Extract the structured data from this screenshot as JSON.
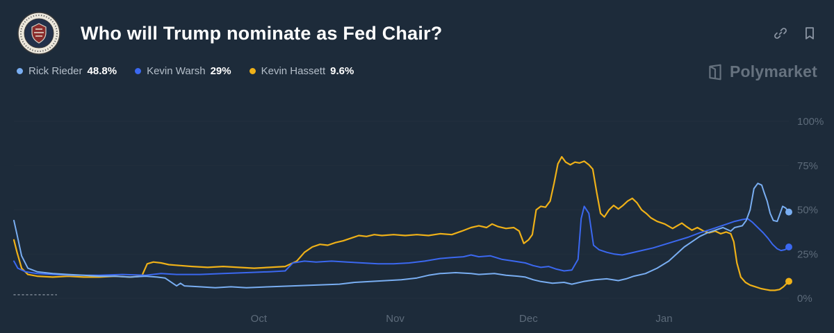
{
  "header": {
    "title": "Who will Trump nominate as Fed Chair?"
  },
  "watermark": {
    "text": "Polymarket"
  },
  "legend": [
    {
      "name": "Rick Rieder",
      "value": "48.8%",
      "color": "#79aef2"
    },
    {
      "name": "Kevin Warsh",
      "value": "29%",
      "color": "#3b68f0"
    },
    {
      "name": "Kevin Hassett",
      "value": "9.6%",
      "color": "#efb118"
    }
  ],
  "colors": {
    "background": "#1d2b3a",
    "gridline": "#232f3d",
    "tick_text": "#5d6b7a"
  },
  "chart_data": {
    "type": "line",
    "title": "Who will Trump nominate as Fed Chair?",
    "ylim": [
      0,
      100
    ],
    "legend_position": "top-left",
    "grid": "faint-horizontal",
    "yticks": [
      {
        "label": "100%",
        "value": 100
      },
      {
        "label": "75%",
        "value": 75
      },
      {
        "label": "50%",
        "value": 50
      },
      {
        "label": "25%",
        "value": 25
      },
      {
        "label": "0%",
        "value": 0
      }
    ],
    "xticks": [
      {
        "label": "Oct",
        "x": 0.316
      },
      {
        "label": "Nov",
        "x": 0.492
      },
      {
        "label": "Dec",
        "x": 0.664
      },
      {
        "label": "Jan",
        "x": 0.839
      }
    ],
    "series": [
      {
        "name": "Kevin Hassett",
        "color": "#efb118",
        "width": 2.2,
        "current": 9.6,
        "points": [
          [
            0,
            33
          ],
          [
            0.004,
            26
          ],
          [
            0.01,
            17
          ],
          [
            0.018,
            13.5
          ],
          [
            0.03,
            12.5
          ],
          [
            0.05,
            12
          ],
          [
            0.07,
            12.5
          ],
          [
            0.09,
            12
          ],
          [
            0.11,
            12
          ],
          [
            0.13,
            12.5
          ],
          [
            0.15,
            12
          ],
          [
            0.165,
            12.5
          ],
          [
            0.172,
            19.5
          ],
          [
            0.18,
            20.5
          ],
          [
            0.19,
            20
          ],
          [
            0.2,
            19
          ],
          [
            0.215,
            18.5
          ],
          [
            0.23,
            18
          ],
          [
            0.25,
            17.5
          ],
          [
            0.27,
            18
          ],
          [
            0.29,
            17.5
          ],
          [
            0.31,
            17
          ],
          [
            0.33,
            17.5
          ],
          [
            0.35,
            18
          ],
          [
            0.365,
            21
          ],
          [
            0.375,
            26
          ],
          [
            0.385,
            29
          ],
          [
            0.395,
            30.5
          ],
          [
            0.405,
            30
          ],
          [
            0.415,
            31.5
          ],
          [
            0.425,
            32.5
          ],
          [
            0.435,
            34
          ],
          [
            0.445,
            35.5
          ],
          [
            0.455,
            35
          ],
          [
            0.465,
            36
          ],
          [
            0.475,
            35.5
          ],
          [
            0.49,
            36
          ],
          [
            0.505,
            35.5
          ],
          [
            0.52,
            36
          ],
          [
            0.535,
            35.5
          ],
          [
            0.55,
            36.5
          ],
          [
            0.565,
            36
          ],
          [
            0.578,
            38
          ],
          [
            0.59,
            40
          ],
          [
            0.6,
            41
          ],
          [
            0.61,
            40
          ],
          [
            0.617,
            42
          ],
          [
            0.625,
            40.5
          ],
          [
            0.635,
            39.5
          ],
          [
            0.645,
            40
          ],
          [
            0.652,
            38
          ],
          [
            0.658,
            31
          ],
          [
            0.664,
            33
          ],
          [
            0.669,
            36
          ],
          [
            0.674,
            50
          ],
          [
            0.68,
            52
          ],
          [
            0.686,
            51.5
          ],
          [
            0.692,
            55
          ],
          [
            0.697,
            65
          ],
          [
            0.702,
            76
          ],
          [
            0.707,
            80
          ],
          [
            0.712,
            77
          ],
          [
            0.718,
            75.5
          ],
          [
            0.724,
            77
          ],
          [
            0.73,
            76.5
          ],
          [
            0.736,
            77.5
          ],
          [
            0.742,
            75.5
          ],
          [
            0.747,
            73
          ],
          [
            0.752,
            60
          ],
          [
            0.757,
            48
          ],
          [
            0.762,
            46
          ],
          [
            0.768,
            50
          ],
          [
            0.774,
            52.5
          ],
          [
            0.78,
            50.5
          ],
          [
            0.786,
            52.5
          ],
          [
            0.792,
            55
          ],
          [
            0.798,
            56.5
          ],
          [
            0.804,
            54
          ],
          [
            0.81,
            50
          ],
          [
            0.816,
            48
          ],
          [
            0.822,
            45.5
          ],
          [
            0.83,
            43.5
          ],
          [
            0.84,
            42
          ],
          [
            0.85,
            39.5
          ],
          [
            0.856,
            41
          ],
          [
            0.862,
            42.5
          ],
          [
            0.868,
            40.5
          ],
          [
            0.875,
            38.5
          ],
          [
            0.882,
            40
          ],
          [
            0.89,
            38
          ],
          [
            0.897,
            37
          ],
          [
            0.905,
            38
          ],
          [
            0.912,
            36.5
          ],
          [
            0.919,
            37.5
          ],
          [
            0.925,
            36.5
          ],
          [
            0.929,
            32
          ],
          [
            0.933,
            20
          ],
          [
            0.938,
            12
          ],
          [
            0.944,
            9
          ],
          [
            0.95,
            7.5
          ],
          [
            0.957,
            6.5
          ],
          [
            0.964,
            5.5
          ],
          [
            0.97,
            5
          ],
          [
            0.976,
            4.5
          ],
          [
            0.982,
            4.5
          ],
          [
            0.988,
            5
          ],
          [
            0.993,
            6.5
          ],
          [
            1,
            9.6
          ]
        ]
      },
      {
        "name": "Kevin Warsh",
        "color": "#3b68f0",
        "width": 2,
        "current": 29,
        "points": [
          [
            0,
            21
          ],
          [
            0.005,
            17
          ],
          [
            0.015,
            15
          ],
          [
            0.03,
            14
          ],
          [
            0.05,
            13.5
          ],
          [
            0.08,
            13
          ],
          [
            0.11,
            13
          ],
          [
            0.14,
            13.5
          ],
          [
            0.17,
            13
          ],
          [
            0.19,
            14
          ],
          [
            0.21,
            13.5
          ],
          [
            0.24,
            13.5
          ],
          [
            0.27,
            14
          ],
          [
            0.3,
            14.5
          ],
          [
            0.33,
            15
          ],
          [
            0.35,
            15.5
          ],
          [
            0.36,
            20
          ],
          [
            0.375,
            21
          ],
          [
            0.39,
            20.5
          ],
          [
            0.41,
            21
          ],
          [
            0.43,
            20.5
          ],
          [
            0.45,
            20
          ],
          [
            0.47,
            19.5
          ],
          [
            0.49,
            19.5
          ],
          [
            0.51,
            20
          ],
          [
            0.53,
            21
          ],
          [
            0.55,
            22.5
          ],
          [
            0.565,
            23
          ],
          [
            0.58,
            23.5
          ],
          [
            0.59,
            24.5
          ],
          [
            0.6,
            23.5
          ],
          [
            0.615,
            24
          ],
          [
            0.63,
            22
          ],
          [
            0.645,
            21
          ],
          [
            0.66,
            20
          ],
          [
            0.67,
            18.5
          ],
          [
            0.68,
            17.5
          ],
          [
            0.69,
            18
          ],
          [
            0.7,
            16.5
          ],
          [
            0.71,
            15.5
          ],
          [
            0.72,
            16
          ],
          [
            0.728,
            22
          ],
          [
            0.732,
            45
          ],
          [
            0.736,
            52
          ],
          [
            0.742,
            48
          ],
          [
            0.748,
            30
          ],
          [
            0.755,
            27.5
          ],
          [
            0.765,
            26
          ],
          [
            0.775,
            25
          ],
          [
            0.785,
            24.5
          ],
          [
            0.795,
            25.5
          ],
          [
            0.81,
            27
          ],
          [
            0.825,
            28.5
          ],
          [
            0.84,
            30.5
          ],
          [
            0.855,
            32.5
          ],
          [
            0.87,
            34.5
          ],
          [
            0.885,
            37
          ],
          [
            0.9,
            39
          ],
          [
            0.91,
            40.5
          ],
          [
            0.92,
            42
          ],
          [
            0.93,
            43.5
          ],
          [
            0.94,
            44.5
          ],
          [
            0.947,
            45
          ],
          [
            0.953,
            43
          ],
          [
            0.96,
            40
          ],
          [
            0.967,
            37
          ],
          [
            0.973,
            34
          ],
          [
            0.979,
            30.5
          ],
          [
            0.985,
            28
          ],
          [
            0.99,
            27
          ],
          [
            0.995,
            27.5
          ],
          [
            1,
            29
          ]
        ]
      },
      {
        "name": "Rick Rieder",
        "color": "#79aef2",
        "width": 2,
        "current": 48.8,
        "points": [
          [
            0,
            44
          ],
          [
            0.004,
            36
          ],
          [
            0.01,
            24
          ],
          [
            0.018,
            17
          ],
          [
            0.03,
            15
          ],
          [
            0.05,
            14
          ],
          [
            0.07,
            13.5
          ],
          [
            0.09,
            13
          ],
          [
            0.11,
            12.5
          ],
          [
            0.13,
            12.5
          ],
          [
            0.15,
            12
          ],
          [
            0.17,
            12.5
          ],
          [
            0.185,
            12
          ],
          [
            0.195,
            11.5
          ],
          [
            0.21,
            7
          ],
          [
            0.215,
            8.5
          ],
          [
            0.22,
            7
          ],
          [
            0.24,
            6.5
          ],
          [
            0.26,
            6
          ],
          [
            0.28,
            6.5
          ],
          [
            0.3,
            6
          ],
          [
            0.33,
            6.5
          ],
          [
            0.36,
            7
          ],
          [
            0.39,
            7.5
          ],
          [
            0.42,
            8
          ],
          [
            0.44,
            9
          ],
          [
            0.46,
            9.5
          ],
          [
            0.48,
            10
          ],
          [
            0.5,
            10.5
          ],
          [
            0.52,
            11.5
          ],
          [
            0.535,
            13
          ],
          [
            0.55,
            14
          ],
          [
            0.57,
            14.5
          ],
          [
            0.59,
            14
          ],
          [
            0.6,
            13.5
          ],
          [
            0.62,
            14
          ],
          [
            0.635,
            13
          ],
          [
            0.65,
            12.5
          ],
          [
            0.66,
            12
          ],
          [
            0.67,
            10.5
          ],
          [
            0.68,
            9.5
          ],
          [
            0.695,
            8.5
          ],
          [
            0.71,
            9
          ],
          [
            0.72,
            8
          ],
          [
            0.735,
            9.5
          ],
          [
            0.75,
            10.5
          ],
          [
            0.765,
            11
          ],
          [
            0.78,
            10
          ],
          [
            0.79,
            11
          ],
          [
            0.8,
            12.5
          ],
          [
            0.815,
            14
          ],
          [
            0.83,
            17
          ],
          [
            0.845,
            21
          ],
          [
            0.855,
            25
          ],
          [
            0.865,
            29
          ],
          [
            0.875,
            32
          ],
          [
            0.885,
            35
          ],
          [
            0.895,
            37
          ],
          [
            0.905,
            38.5
          ],
          [
            0.915,
            40
          ],
          [
            0.925,
            38
          ],
          [
            0.93,
            40
          ],
          [
            0.94,
            41
          ],
          [
            0.945,
            44
          ],
          [
            0.95,
            50
          ],
          [
            0.955,
            62
          ],
          [
            0.96,
            65
          ],
          [
            0.965,
            64
          ],
          [
            0.968,
            60
          ],
          [
            0.972,
            55
          ],
          [
            0.976,
            48
          ],
          [
            0.98,
            44
          ],
          [
            0.985,
            43.5
          ],
          [
            0.988,
            47
          ],
          [
            0.992,
            52
          ],
          [
            0.996,
            51
          ],
          [
            1,
            48.8
          ]
        ]
      },
      {
        "name": "other-dotted",
        "color": "#7d8794",
        "width": 1.5,
        "dash": "2 4",
        "endpoint": false,
        "points": [
          [
            0,
            2
          ],
          [
            0.055,
            2
          ]
        ]
      }
    ]
  }
}
